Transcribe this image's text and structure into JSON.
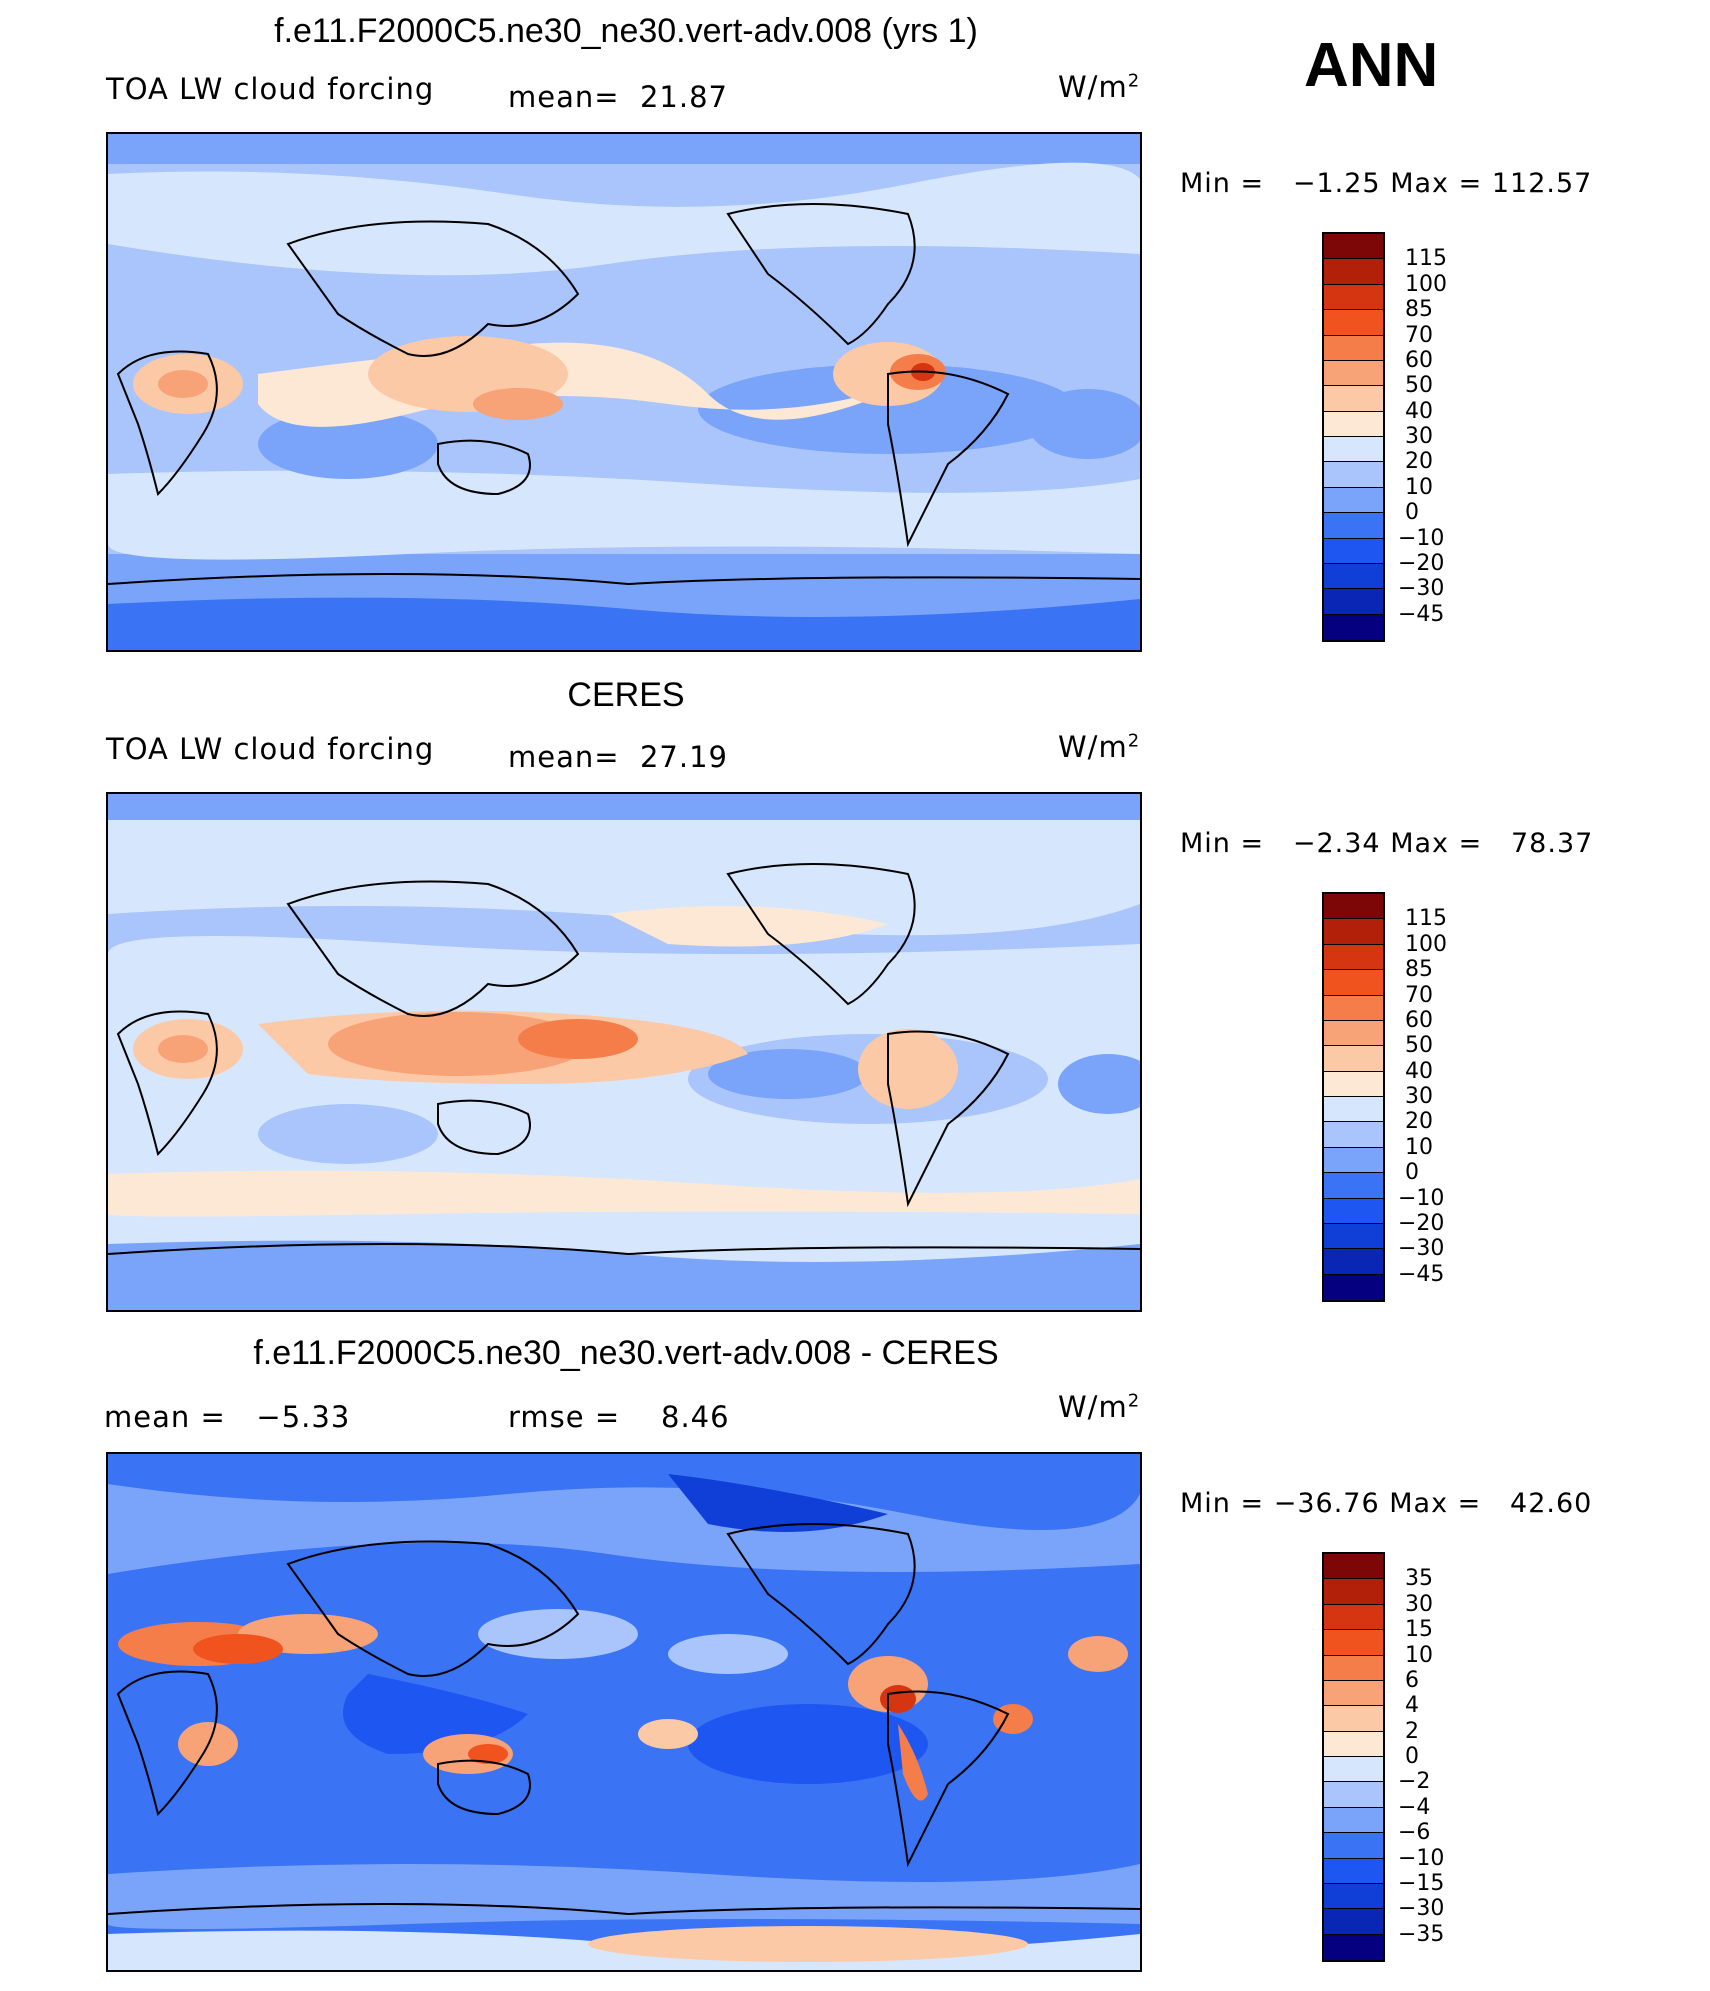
{
  "season": "ANN",
  "units_prefix": "W/m",
  "units_sup": "2",
  "palette": {
    "c0": "#04007f",
    "c1": "#0a26b5",
    "c2": "#0f3fd6",
    "c3": "#1d56f0",
    "c4": "#3b73f5",
    "c5": "#7aa3fa",
    "c6": "#a9c5fb",
    "c7": "#d6e7fd",
    "c8": "#fde8d6",
    "c9": "#fcc9a6",
    "c10": "#f8a278",
    "c11": "#f57d4a",
    "c12": "#f0531e",
    "c13": "#d63511",
    "c14": "#b3200a",
    "c15": "#7d0606",
    "land": "#000000"
  },
  "chart_data": [
    {
      "type": "heatmap",
      "title": "f.e11.F2000C5.ne30_ne30.vert-adv.008 (yrs 1)",
      "variable": "TOA LW cloud forcing",
      "mean_label": "mean=",
      "mean": "21.87",
      "min_label": "Min =",
      "min": "−1.25",
      "max_label": "Max =",
      "max": "112.57",
      "colorbar_levels": [
        "115",
        "100",
        "85",
        "70",
        "60",
        "50",
        "40",
        "30",
        "20",
        "10",
        "0",
        "−10",
        "−20",
        "−30",
        "−45"
      ]
    },
    {
      "type": "heatmap",
      "title": "CERES",
      "variable": "TOA LW cloud forcing",
      "mean_label": "mean=",
      "mean": "27.19",
      "min_label": "Min =",
      "min": "−2.34",
      "max_label": "Max =",
      "max": "78.37",
      "colorbar_levels": [
        "115",
        "100",
        "85",
        "70",
        "60",
        "50",
        "40",
        "30",
        "20",
        "10",
        "0",
        "−10",
        "−20",
        "−30",
        "−45"
      ]
    },
    {
      "type": "heatmap",
      "title": "f.e11.F2000C5.ne30_ne30.vert-adv.008 - CERES",
      "mean_label": "mean =",
      "mean": "−5.33",
      "rmse_label": "rmse =",
      "rmse": "8.46",
      "min_label": "Min =",
      "min": "−36.76",
      "max_label": "Max =",
      "max": "42.60",
      "colorbar_levels": [
        "35",
        "30",
        "15",
        "10",
        "6",
        "4",
        "2",
        "0",
        "−2",
        "−4",
        "−6",
        "−10",
        "−15",
        "−30",
        "−35"
      ]
    }
  ]
}
